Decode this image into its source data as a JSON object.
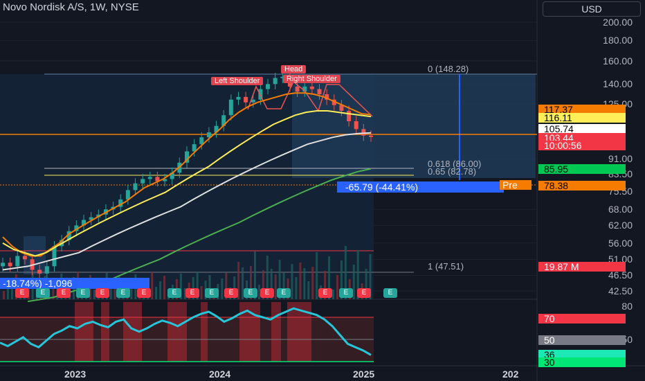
{
  "header": {
    "title": "Novo Nordisk A/S, 1W, NYSE",
    "currency_button": "USD"
  },
  "colors": {
    "background": "#131722",
    "up": "#26a69a",
    "down": "#ef5350",
    "ema_orange": "#f57c00",
    "ema_yellow": "#ffee58",
    "ema_white": "#e0e0e0",
    "ema_green": "#4caf50",
    "fib_zone": "#1e3a56",
    "rsi_line": "#26c6da"
  },
  "price_axis": {
    "ticks": [
      "200.00",
      "180.00",
      "160.00",
      "140.00",
      "125.00",
      "91.00",
      "68.00",
      "62.00",
      "56.00",
      "51.00",
      "46.50",
      "42.50"
    ],
    "partial_ticks": [
      "83.50",
      "75.50"
    ]
  },
  "price_tags": [
    {
      "label": "117.37",
      "bg": "#f57c00",
      "fg": "#000000",
      "value": 117.37
    },
    {
      "label": "116.11",
      "bg": "#ffee58",
      "fg": "#000000",
      "value": 116.11
    },
    {
      "label": "105.74",
      "bg": "#ffffff",
      "fg": "#000000",
      "value": 105.74
    },
    {
      "label": "103.44",
      "bg": "#f23645",
      "fg": "#ffffff",
      "value": 103.44
    },
    {
      "label": "10:00:56",
      "bg": "#f23645",
      "fg": "#ffffff",
      "value": null
    },
    {
      "label": "85.95",
      "bg": "#00c853",
      "fg": "#000000",
      "value": 85.95
    },
    {
      "label": "78.38",
      "bg": "#f57c00",
      "fg": "#000000",
      "value": 78.38
    },
    {
      "label": "19.87 M",
      "bg": "#f23645",
      "fg": "#ffffff",
      "value": null
    }
  ],
  "pre_label": "Pre",
  "fib_labels": [
    "0 (148.28)",
    "0.618 (86.00)",
    "0.65 (82.78)",
    "1 (47.51)"
  ],
  "pattern_labels": {
    "head": "Head",
    "left_shoulder": "Left Shoulder",
    "right_shoulder": "Right Shoulder"
  },
  "measure_labels": {
    "right": "-65.79 (-44.41%)",
    "left": "-18.74%) -1,096"
  },
  "earnings_label": "E",
  "x_axis": [
    "2023",
    "2024",
    "2025",
    "202"
  ],
  "rsi_axis": {
    "ticks": [
      "80",
      "50"
    ],
    "tags": [
      {
        "label": "70",
        "bg": "#f23645",
        "fg": "#ffffff"
      },
      {
        "label": "50",
        "bg": "#787b86",
        "fg": "#ffffff"
      },
      {
        "label": "36",
        "bg": "#1de9b6",
        "fg": "#000000"
      },
      {
        "label": "30",
        "bg": "#00e676",
        "fg": "#000000"
      }
    ]
  },
  "chart_data": {
    "type": "line",
    "title": "Novo Nordisk A/S, 1W, NYSE",
    "y_scale": "log",
    "ylim": [
      42,
      210
    ],
    "x_ticks": [
      "2023",
      "2024",
      "2025"
    ],
    "series": [
      {
        "values": [
          50,
          49,
          52,
          51,
          48,
          47,
          49,
          55,
          57,
          60,
          62,
          64,
          65,
          66,
          68,
          69,
          72,
          76,
          79,
          81,
          82,
          80,
          81,
          84,
          89,
          95,
          99,
          103,
          106,
          110,
          117,
          128,
          130,
          126,
          128,
          136,
          140,
          145,
          146,
          138,
          134,
          138,
          136,
          132,
          128,
          124,
          120,
          113,
          108,
          104,
          103.44
        ]
      },
      {
        "values": [
          58,
          55,
          53,
          52,
          52,
          54,
          56,
          59,
          61,
          63,
          65,
          67,
          69,
          71,
          74,
          77,
          79,
          81,
          84,
          88,
          93,
          98,
          103,
          108,
          114,
          119,
          123,
          126,
          128,
          130,
          132,
          133,
          133,
          132,
          130,
          127,
          124,
          121,
          118,
          117.37
        ]
      },
      {
        "values": [
          56,
          54,
          53,
          52,
          53,
          55,
          57,
          59,
          61,
          63,
          65,
          67,
          69,
          71,
          73,
          75,
          78,
          81,
          84,
          87,
          91,
          95,
          99,
          103,
          107,
          111,
          114,
          117,
          119,
          120,
          120,
          119,
          118,
          117,
          116.11
        ]
      },
      {
        "values": [
          48,
          48.5,
          49,
          50,
          51,
          52,
          53,
          55,
          57,
          59,
          61,
          63,
          65,
          67,
          69,
          72,
          75,
          78,
          81,
          84,
          87,
          90,
          93,
          96,
          99,
          101,
          103,
          104.5,
          105.3,
          105.74
        ]
      },
      {
        "values": [
          40,
          40.5,
          41,
          42,
          43,
          44,
          45,
          46.5,
          48,
          49.5,
          51,
          53,
          55,
          57,
          59,
          61,
          63,
          65.5,
          68,
          70.5,
          73,
          75.5,
          78,
          80.5,
          82.5,
          84.5,
          85.95
        ]
      }
    ],
    "rsi": {
      "levels": [
        80,
        70,
        50,
        30
      ],
      "values": [
        47,
        44,
        48,
        52,
        46,
        43,
        49,
        55,
        58,
        62,
        60,
        64,
        66,
        63,
        61,
        66,
        68,
        60,
        57,
        60,
        64,
        67,
        65,
        62,
        66,
        70,
        73,
        75,
        71,
        66,
        69,
        73,
        76,
        72,
        70,
        68,
        72,
        75,
        78,
        76,
        74,
        72,
        68,
        62,
        54,
        46,
        43,
        40,
        36
      ]
    }
  }
}
